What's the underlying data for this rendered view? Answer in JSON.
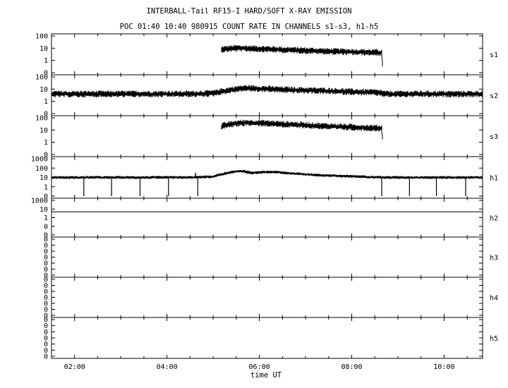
{
  "title_line1": "INTERBALL-Tail RF15-I HARD/SOFT X-RAY EMISSION",
  "title_line2": "POC 01:40 10:40 980915  COUNT RATE IN CHANNELS s1-s3, h1-h5",
  "xlabel": "time UT",
  "chart_data": {
    "type": "line",
    "x_range": [
      "01:30",
      "10:50"
    ],
    "x_ticks": [
      "02:00",
      "04:00",
      "06:00",
      "08:00",
      "10:00"
    ],
    "y_scale": "log",
    "panels": [
      {
        "name": "s1",
        "y_ticks": [
          "100",
          "10",
          "1",
          "0"
        ],
        "points": [
          [
            "05:10",
            0
          ],
          [
            "05:11",
            8
          ],
          [
            "05:30",
            10
          ],
          [
            "06:00",
            9
          ],
          [
            "06:30",
            7.5
          ],
          [
            "07:00",
            6.5
          ],
          [
            "07:30",
            5.5
          ],
          [
            "08:00",
            5
          ],
          [
            "08:30",
            4.5
          ],
          [
            "08:39",
            4.3
          ],
          [
            "08:40",
            0
          ]
        ]
      },
      {
        "name": "s2",
        "y_ticks": [
          "100",
          "10",
          "1",
          "0"
        ],
        "points": [
          [
            "01:30",
            4
          ],
          [
            "03:00",
            4
          ],
          [
            "04:30",
            4
          ],
          [
            "05:00",
            4.5
          ],
          [
            "05:20",
            8
          ],
          [
            "05:40",
            12
          ],
          [
            "06:00",
            11
          ],
          [
            "06:30",
            9
          ],
          [
            "07:00",
            8
          ],
          [
            "07:30",
            7
          ],
          [
            "08:00",
            6
          ],
          [
            "08:39",
            5
          ],
          [
            "08:41",
            4
          ],
          [
            "10:00",
            4
          ],
          [
            "10:50",
            4
          ]
        ]
      },
      {
        "name": "s3",
        "y_ticks": [
          "100",
          "10",
          "1",
          "0"
        ],
        "points": [
          [
            "05:10",
            0
          ],
          [
            "05:11",
            20
          ],
          [
            "05:30",
            35
          ],
          [
            "05:45",
            40
          ],
          [
            "06:00",
            38
          ],
          [
            "06:30",
            30
          ],
          [
            "07:00",
            25
          ],
          [
            "07:30",
            20
          ],
          [
            "08:00",
            17
          ],
          [
            "08:39",
            14
          ],
          [
            "08:40",
            0
          ]
        ]
      },
      {
        "name": "h1",
        "y_ticks": [
          "1000",
          "100",
          "10",
          "1",
          "0"
        ],
        "points": [
          [
            "01:30",
            10
          ],
          [
            "04:30",
            10
          ],
          [
            "05:00",
            12
          ],
          [
            "05:20",
            30
          ],
          [
            "05:35",
            50
          ],
          [
            "05:50",
            30
          ],
          [
            "06:15",
            40
          ],
          [
            "06:45",
            25
          ],
          [
            "07:15",
            18
          ],
          [
            "07:45",
            14
          ],
          [
            "08:15",
            12
          ],
          [
            "08:39",
            10
          ],
          [
            "08:41",
            10
          ],
          [
            "10:50",
            10
          ]
        ],
        "spikes": [
          [
            "04:37",
            30
          ]
        ],
        "dropouts": [
          "02:12",
          "02:48",
          "03:25",
          "04:02",
          "04:40",
          "08:39",
          "09:15",
          "09:50",
          "10:28"
        ]
      },
      {
        "name": "h2",
        "y_ticks": [
          "1000",
          "10",
          "1",
          "0",
          "0"
        ],
        "points": [
          [
            "01:30",
            10
          ],
          [
            "10:50",
            10
          ]
        ]
      },
      {
        "name": "h3",
        "y_ticks": [
          "0",
          "0",
          "0",
          "0",
          "0",
          "0",
          "0"
        ],
        "points": []
      },
      {
        "name": "h4",
        "y_ticks": [
          "0",
          "0",
          "0",
          "0",
          "0",
          "0",
          "0"
        ],
        "points": []
      },
      {
        "name": "h5",
        "y_ticks": [
          "0",
          "0",
          "0",
          "0",
          "0",
          "0",
          "0"
        ],
        "points": []
      }
    ]
  }
}
